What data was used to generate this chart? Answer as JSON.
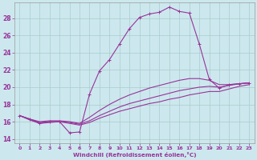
{
  "xlabel": "Windchill (Refroidissement éolien,°C)",
  "background_color": "#cce8ee",
  "grid_color": "#aacccc",
  "line_color": "#993399",
  "xlim": [
    -0.5,
    23.5
  ],
  "ylim": [
    13.5,
    29.8
  ],
  "yticks": [
    14,
    16,
    18,
    20,
    22,
    24,
    26,
    28
  ],
  "xticks": [
    0,
    1,
    2,
    3,
    4,
    5,
    6,
    7,
    8,
    9,
    10,
    11,
    12,
    13,
    14,
    15,
    16,
    17,
    18,
    19,
    20,
    21,
    22,
    23
  ],
  "series": [
    {
      "x": [
        0,
        1,
        2,
        3,
        4,
        5,
        6,
        7,
        8,
        9,
        10,
        11,
        12,
        13,
        14,
        15,
        16,
        17,
        18,
        19,
        20,
        21,
        22,
        23
      ],
      "y": [
        16.7,
        16.3,
        15.8,
        16.0,
        16.0,
        14.7,
        14.8,
        19.2,
        21.9,
        23.2,
        25.0,
        26.8,
        28.1,
        28.5,
        28.7,
        29.3,
        28.8,
        28.6,
        25.0,
        20.9,
        19.9,
        20.3,
        20.4,
        20.5
      ],
      "marker": "+"
    },
    {
      "x": [
        0,
        1,
        2,
        3,
        4,
        5,
        6,
        7,
        8,
        9,
        10,
        11,
        12,
        13,
        14,
        15,
        16,
        17,
        18,
        19,
        20,
        21,
        22,
        23
      ],
      "y": [
        16.7,
        16.3,
        16.0,
        16.1,
        16.1,
        16.0,
        15.8,
        16.5,
        17.3,
        18.0,
        18.6,
        19.1,
        19.5,
        19.9,
        20.2,
        20.5,
        20.8,
        21.0,
        21.0,
        20.8,
        20.3,
        20.3,
        20.4,
        20.5
      ],
      "marker": null
    },
    {
      "x": [
        0,
        1,
        2,
        3,
        4,
        5,
        6,
        7,
        8,
        9,
        10,
        11,
        12,
        13,
        14,
        15,
        16,
        17,
        18,
        19,
        20,
        21,
        22,
        23
      ],
      "y": [
        16.7,
        16.3,
        15.9,
        16.0,
        16.0,
        15.9,
        15.7,
        16.1,
        16.7,
        17.2,
        17.7,
        18.1,
        18.4,
        18.7,
        19.0,
        19.3,
        19.6,
        19.8,
        20.0,
        20.1,
        20.0,
        20.2,
        20.4,
        20.5
      ],
      "marker": null
    },
    {
      "x": [
        0,
        1,
        2,
        3,
        4,
        5,
        6,
        7,
        8,
        9,
        10,
        11,
        12,
        13,
        14,
        15,
        16,
        17,
        18,
        19,
        20,
        21,
        22,
        23
      ],
      "y": [
        16.7,
        16.2,
        15.8,
        15.9,
        16.0,
        15.8,
        15.6,
        15.9,
        16.4,
        16.8,
        17.2,
        17.5,
        17.8,
        18.1,
        18.3,
        18.6,
        18.8,
        19.1,
        19.3,
        19.5,
        19.5,
        19.8,
        20.1,
        20.3
      ],
      "marker": null
    }
  ]
}
